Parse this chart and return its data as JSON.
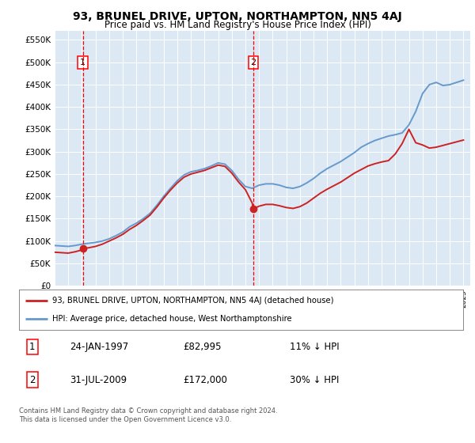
{
  "title": "93, BRUNEL DRIVE, UPTON, NORTHAMPTON, NN5 4AJ",
  "subtitle": "Price paid vs. HM Land Registry's House Price Index (HPI)",
  "background_color": "#dce9f5",
  "plot_bg_color": "#dce9f5",
  "yticks": [
    0,
    50000,
    100000,
    150000,
    200000,
    250000,
    300000,
    350000,
    400000,
    450000,
    500000,
    550000
  ],
  "ytick_labels": [
    "£0",
    "£50K",
    "£100K",
    "£150K",
    "£200K",
    "£250K",
    "£300K",
    "£350K",
    "£400K",
    "£450K",
    "£500K",
    "£550K"
  ],
  "ylim": [
    0,
    570000
  ],
  "xlim_start": 1995.0,
  "xlim_end": 2025.5,
  "hpi_line_color": "#6699cc",
  "price_line_color": "#cc2222",
  "sale1_x": 1997.07,
  "sale1_y": 82995,
  "sale2_x": 2009.58,
  "sale2_y": 172000,
  "legend_line1": "93, BRUNEL DRIVE, UPTON, NORTHAMPTON, NN5 4AJ (detached house)",
  "legend_line2": "HPI: Average price, detached house, West Northamptonshire",
  "table_row1_num": "1",
  "table_row1_date": "24-JAN-1997",
  "table_row1_price": "£82,995",
  "table_row1_hpi": "11% ↓ HPI",
  "table_row2_num": "2",
  "table_row2_date": "31-JUL-2009",
  "table_row2_price": "£172,000",
  "table_row2_hpi": "30% ↓ HPI",
  "footer": "Contains HM Land Registry data © Crown copyright and database right 2024.\nThis data is licensed under the Open Government Licence v3.0.",
  "hpi_years": [
    1995,
    1995.5,
    1996,
    1996.5,
    1997,
    1997.5,
    1998,
    1998.5,
    1999,
    1999.5,
    2000,
    2000.5,
    2001,
    2001.5,
    2002,
    2002.5,
    2003,
    2003.5,
    2004,
    2004.5,
    2005,
    2005.5,
    2006,
    2006.5,
    2007,
    2007.5,
    2008,
    2008.5,
    2009,
    2009.5,
    2010,
    2010.5,
    2011,
    2011.5,
    2012,
    2012.5,
    2013,
    2013.5,
    2014,
    2014.5,
    2015,
    2015.5,
    2016,
    2016.5,
    2017,
    2017.5,
    2018,
    2018.5,
    2019,
    2019.5,
    2020,
    2020.5,
    2021,
    2021.5,
    2022,
    2022.5,
    2023,
    2023.5,
    2024,
    2024.5,
    2025
  ],
  "hpi_values": [
    90000,
    89000,
    88000,
    90000,
    93000,
    95000,
    97000,
    100000,
    105000,
    112000,
    120000,
    132000,
    140000,
    150000,
    162000,
    180000,
    200000,
    218000,
    235000,
    248000,
    255000,
    258000,
    262000,
    268000,
    275000,
    272000,
    258000,
    238000,
    222000,
    218000,
    225000,
    228000,
    228000,
    225000,
    220000,
    218000,
    222000,
    230000,
    240000,
    252000,
    262000,
    270000,
    278000,
    288000,
    298000,
    310000,
    318000,
    325000,
    330000,
    335000,
    338000,
    342000,
    360000,
    390000,
    430000,
    450000,
    455000,
    448000,
    450000,
    455000,
    460000
  ],
  "price_years": [
    1995,
    1995.5,
    1996,
    1996.5,
    1997,
    1997.07,
    1997.5,
    1998,
    1998.5,
    1999,
    1999.5,
    2000,
    2000.5,
    2001,
    2001.5,
    2002,
    2002.5,
    2003,
    2003.5,
    2004,
    2004.5,
    2005,
    2005.5,
    2006,
    2006.5,
    2007,
    2007.5,
    2008,
    2008.5,
    2009,
    2009.5,
    2009.58,
    2010,
    2010.5,
    2011,
    2011.5,
    2012,
    2012.5,
    2013,
    2013.5,
    2014,
    2014.5,
    2015,
    2015.5,
    2016,
    2016.5,
    2017,
    2017.5,
    2018,
    2018.5,
    2019,
    2019.5,
    2020,
    2020.5,
    2021,
    2021.5,
    2022,
    2022.5,
    2023,
    2023.5,
    2024,
    2024.5,
    2025
  ],
  "price_values": [
    75000,
    74000,
    73000,
    76000,
    80000,
    82995,
    85000,
    88000,
    93000,
    100000,
    107000,
    115000,
    126000,
    135000,
    146000,
    158000,
    176000,
    196000,
    214000,
    230000,
    243000,
    250000,
    254000,
    258000,
    264000,
    270000,
    267000,
    252000,
    232000,
    215000,
    185000,
    172000,
    178000,
    182000,
    182000,
    179000,
    175000,
    173000,
    177000,
    185000,
    196000,
    207000,
    216000,
    224000,
    232000,
    242000,
    252000,
    260000,
    268000,
    273000,
    277000,
    280000,
    295000,
    318000,
    350000,
    320000,
    315000,
    308000,
    310000,
    314000,
    318000,
    322000,
    326000
  ]
}
